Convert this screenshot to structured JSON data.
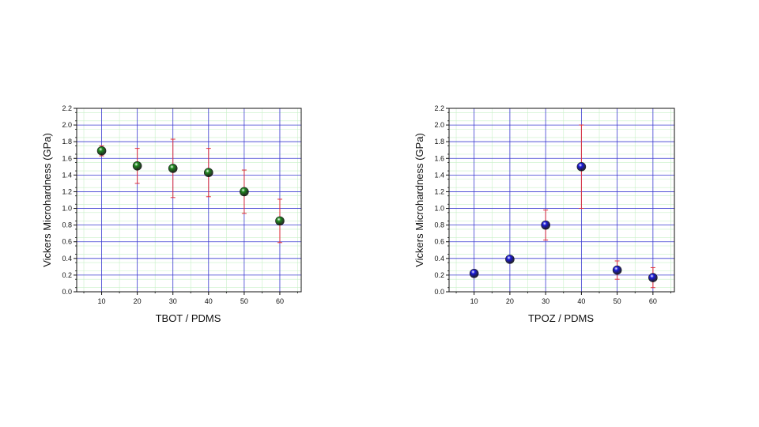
{
  "chart_data": [
    {
      "type": "scatter",
      "title": "",
      "xlabel": "TBOT / PDMS",
      "ylabel": "Vickers Microhardness (GPa)",
      "xlim": [
        3,
        66
      ],
      "ylim": [
        0,
        2.2
      ],
      "x_ticks": [
        10,
        20,
        30,
        40,
        50,
        60
      ],
      "y_ticks": [
        0.0,
        0.2,
        0.4,
        0.6,
        0.8,
        1.0,
        1.2,
        1.4,
        1.6,
        1.8,
        2.0,
        2.2
      ],
      "grid": true,
      "legend": "none",
      "point_color": "#1f8a1f",
      "errorbar_color": "#e0303a",
      "series": [
        {
          "x": [
            10,
            20,
            30,
            40,
            50,
            60
          ],
          "y": [
            1.69,
            1.51,
            1.48,
            1.43,
            1.2,
            0.85
          ],
          "err_low": [
            0.06,
            0.21,
            0.35,
            0.29,
            0.26,
            0.26
          ],
          "err_high": [
            0.06,
            0.21,
            0.35,
            0.29,
            0.26,
            0.26
          ]
        }
      ]
    },
    {
      "type": "scatter",
      "title": "",
      "xlabel": "TPOZ / PDMS",
      "ylabel": "Vickers Microhardness (GPa)",
      "xlim": [
        3,
        66
      ],
      "ylim": [
        0,
        2.2
      ],
      "x_ticks": [
        10,
        20,
        30,
        40,
        50,
        60
      ],
      "y_ticks": [
        0.0,
        0.2,
        0.4,
        0.6,
        0.8,
        1.0,
        1.2,
        1.4,
        1.6,
        1.8,
        2.0,
        2.2
      ],
      "grid": true,
      "legend": "none",
      "point_color": "#1a1adc",
      "errorbar_color": "#e0303a",
      "series": [
        {
          "x": [
            10,
            20,
            30,
            40,
            50,
            60
          ],
          "y": [
            0.22,
            0.39,
            0.8,
            1.5,
            0.26,
            0.17
          ],
          "err_low": [
            0.0,
            0.0,
            0.18,
            0.5,
            0.11,
            0.12
          ],
          "err_high": [
            0.0,
            0.0,
            0.18,
            0.5,
            0.11,
            0.12
          ]
        }
      ]
    }
  ]
}
